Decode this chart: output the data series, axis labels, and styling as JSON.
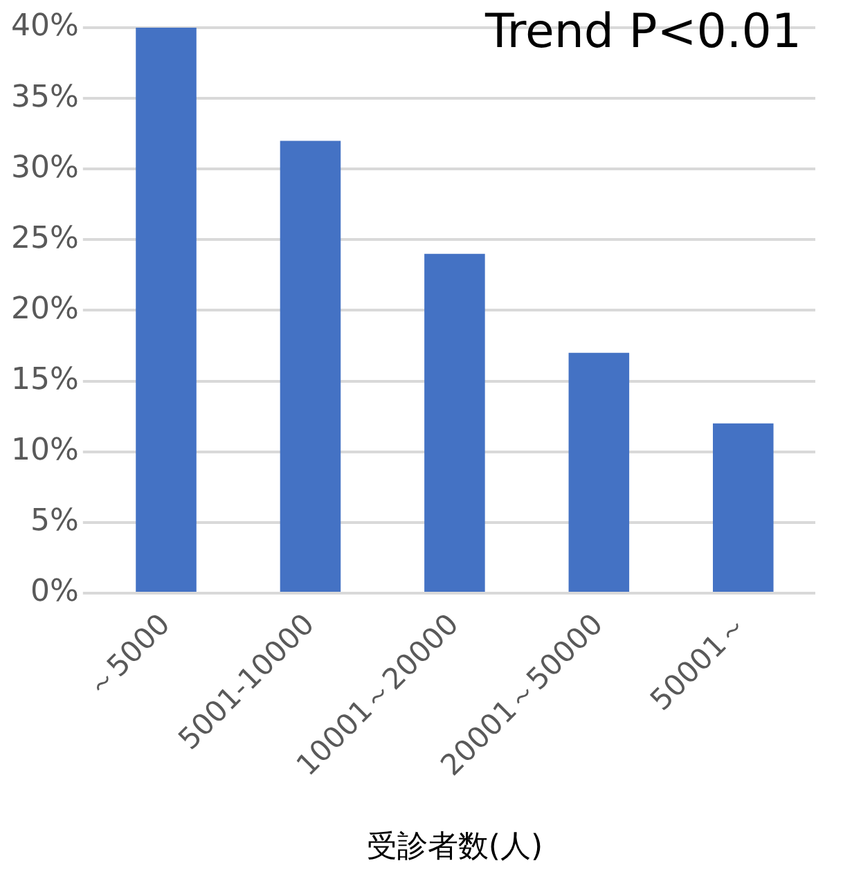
{
  "chart_data": {
    "type": "bar",
    "xlabel": "受診者数(人)",
    "annotations": [
      "Trend P<0.01"
    ],
    "categories": [
      "～5000",
      "5001-10000",
      "10001～20000",
      "20001～50000",
      "50001～"
    ],
    "values": [
      40,
      32,
      24,
      17,
      12
    ],
    "color": "#4472c4",
    "ylim": [
      0,
      40
    ],
    "yticks": [
      {
        "value": 0,
        "label": "0%"
      },
      {
        "value": 5,
        "label": "5%"
      },
      {
        "value": 10,
        "label": "10%"
      },
      {
        "value": 15,
        "label": "15%"
      },
      {
        "value": 20,
        "label": "20%"
      },
      {
        "value": 25,
        "label": "25%"
      },
      {
        "value": 30,
        "label": "30%"
      },
      {
        "value": 35,
        "label": "35%"
      },
      {
        "value": 40,
        "label": "40%"
      }
    ],
    "grid": "y",
    "legend": false
  }
}
